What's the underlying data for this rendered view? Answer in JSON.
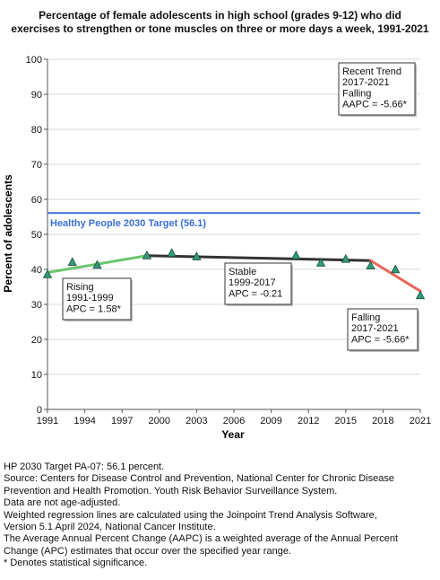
{
  "chart_data": {
    "type": "line",
    "title_lines": [
      "Percentage of female adolescents in high school (grades 9-12) who did",
      "exercises to strengthen or tone muscles on three or more days a week, 1991-2021"
    ],
    "xlabel": "Year",
    "ylabel": "Percent of adolescents",
    "xlim": [
      1991,
      2021
    ],
    "ylim": [
      0,
      100
    ],
    "x_ticks": [
      1991,
      1994,
      1997,
      2000,
      2003,
      2006,
      2009,
      2012,
      2015,
      2018,
      2021
    ],
    "y_ticks": [
      0,
      10,
      20,
      30,
      40,
      50,
      60,
      70,
      80,
      90,
      100
    ],
    "observed": {
      "x": [
        1991,
        1993,
        1995,
        1999,
        2001,
        2003,
        2011,
        2013,
        2015,
        2017,
        2019,
        2021
      ],
      "y": [
        38.5,
        42.0,
        41.2,
        43.9,
        44.6,
        43.6,
        43.9,
        41.8,
        42.9,
        41.0,
        39.9,
        32.5
      ]
    },
    "target": {
      "label": "Healthy People 2030 Target (56.1)",
      "value": 56.1,
      "color": "#3a6fd8"
    },
    "segments": [
      {
        "x": [
          1991,
          1999
        ],
        "y": [
          39.1,
          43.9
        ],
        "color": "#6cc56c"
      },
      {
        "x": [
          1999,
          2017
        ],
        "y": [
          43.9,
          42.5
        ],
        "color": "#333333"
      },
      {
        "x": [
          2017,
          2021
        ],
        "y": [
          42.5,
          33.8
        ],
        "color": "#e8665a"
      }
    ],
    "annotations": [
      {
        "lines": [
          "Rising",
          "1991-1999",
          "APC =  1.58*"
        ]
      },
      {
        "lines": [
          "Stable",
          "1999-2017",
          "APC = -0.21"
        ]
      },
      {
        "lines": [
          "Falling",
          "2017-2021",
          "APC = -5.66*"
        ]
      },
      {
        "lines": [
          "Recent Trend",
          "2017-2021",
          "Falling",
          "AAPC = -5.66*"
        ]
      }
    ],
    "marker_color": "#2f9a7a"
  },
  "notes": [
    "HP 2030 Target PA-07: 56.1 percent.",
    "Source: Centers for Disease Control and Prevention, National Center for Chronic Disease",
    "Prevention and Health Promotion. Youth Risk Behavior Surveillance System.",
    "Data are not age-adjusted.",
    "Weighted regression lines are calculated using the Joinpoint Trend Analysis Software,",
    "Version 5.1 April 2024, National Cancer Institute.",
    "The Average Annual Percent Change (AAPC) is a weighted average of the Annual Percent",
    "Change (APC) estimates that occur over the specified year range.",
    "* Denotes statistical significance."
  ]
}
